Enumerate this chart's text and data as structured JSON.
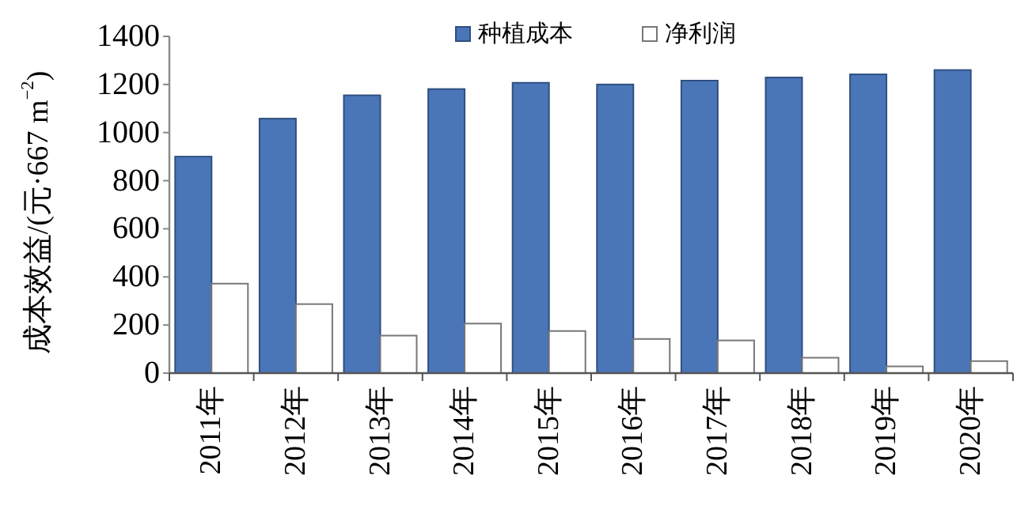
{
  "chart_data": {
    "type": "bar",
    "ylabel": "成本效益/(元·667 m$^{−2}$)",
    "categories": [
      "2011年",
      "2012年",
      "2013年",
      "2014年",
      "2015年",
      "2016年",
      "2017年",
      "2018年",
      "2019年",
      "2020年"
    ],
    "series": [
      {
        "name": "种植成本",
        "color": "#4a76b8",
        "values": [
          900,
          1058,
          1155,
          1181,
          1207,
          1200,
          1216,
          1229,
          1242,
          1260
        ]
      },
      {
        "name": "净利润",
        "color": "#ffffff",
        "values": [
          372,
          287,
          156,
          206,
          175,
          142,
          136,
          64,
          28,
          50
        ]
      }
    ],
    "ylim": [
      0,
      1400
    ],
    "yticks": [
      0,
      200,
      400,
      600,
      800,
      1000,
      1200,
      1400
    ],
    "grid": false,
    "legend": "top"
  }
}
